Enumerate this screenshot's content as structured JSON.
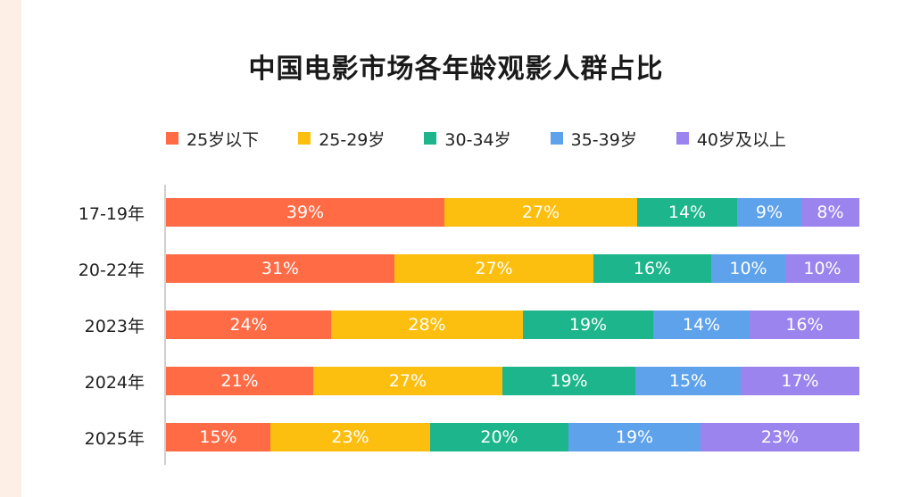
{
  "title": "中国电影市场各年龄观影人群占比",
  "chart_data": {
    "type": "bar",
    "orientation": "horizontal",
    "stacked": true,
    "title": "中国电影市场各年龄观影人群占比",
    "categories": [
      "17-19年",
      "20-22年",
      "2023年",
      "2024年",
      "2025年"
    ],
    "series": [
      {
        "name": "25岁以下",
        "color": "#ff6b45",
        "values": [
          39,
          31,
          24,
          21,
          15
        ],
        "labels": [
          "39%",
          "31%",
          "24%",
          "21%",
          "15%"
        ]
      },
      {
        "name": "25-29岁",
        "color": "#fdbf0f",
        "values": [
          27,
          27,
          28,
          27,
          23
        ],
        "labels": [
          "27%",
          "27%",
          "28%",
          "27%",
          "23%"
        ]
      },
      {
        "name": "30-34岁",
        "color": "#1cb58c",
        "values": [
          14,
          16,
          19,
          19,
          20
        ],
        "labels": [
          "14%",
          "16%",
          "19%",
          "19%",
          "20%"
        ]
      },
      {
        "name": "35-39岁",
        "color": "#5ea2ec",
        "values": [
          9,
          10,
          14,
          15,
          19
        ],
        "labels": [
          "9%",
          "10%",
          "14%",
          "15%",
          "19%"
        ]
      },
      {
        "name": "40岁及以上",
        "color": "#9b84ee",
        "values": [
          8,
          10,
          16,
          17,
          23
        ],
        "labels": [
          "8%",
          "10%",
          "16%",
          "17%",
          "23%"
        ]
      }
    ],
    "legend_position": "top",
    "grid": false
  }
}
